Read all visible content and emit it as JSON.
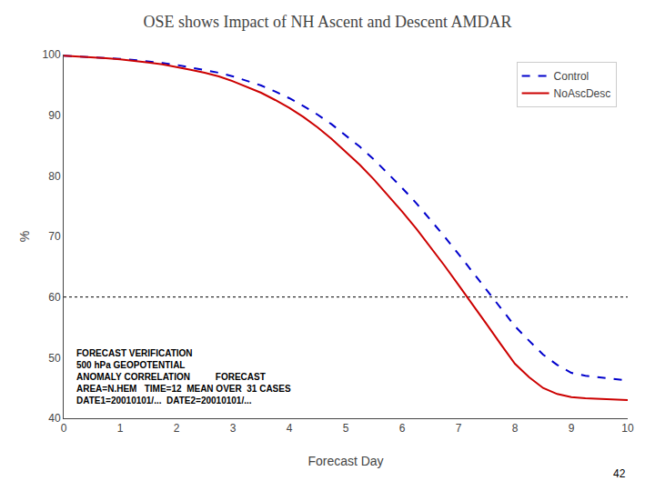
{
  "chart_data": {
    "type": "line",
    "title": "OSE shows Impact of NH Ascent and Descent AMDAR",
    "xlabel": "Forecast Day",
    "ylabel": "%",
    "annotations": [
      "FORECAST VERIFICATION",
      "500 hPa GEOPOTENTIAL",
      "ANOMALY CORRELATION          FORECAST",
      "AREA=N.HEM   TIME=12  MEAN OVER  31 CASES",
      "DATE1=20010101/...  DATE2=20010101/..."
    ],
    "footnote": "42",
    "x": [
      0,
      0.25,
      0.5,
      0.75,
      1.0,
      1.25,
      1.5,
      1.75,
      2.0,
      2.25,
      2.5,
      2.75,
      3.0,
      3.25,
      3.5,
      3.75,
      4.0,
      4.25,
      4.5,
      4.75,
      5.0,
      5.25,
      5.5,
      5.75,
      6.0,
      6.25,
      6.5,
      6.75,
      7.0,
      7.25,
      7.5,
      7.75,
      8.0,
      8.25,
      8.5,
      8.75,
      9.0,
      9.25,
      9.5,
      9.75,
      10.0
    ],
    "series": [
      {
        "name": "Control",
        "color": "#0000cc",
        "line_style": "dashed",
        "values": [
          99.8,
          99.7,
          99.6,
          99.5,
          99.3,
          99.1,
          98.9,
          98.6,
          98.3,
          97.9,
          97.5,
          97.0,
          96.4,
          95.7,
          94.9,
          93.9,
          92.8,
          91.5,
          90.1,
          88.5,
          86.7,
          84.8,
          82.7,
          80.4,
          78.0,
          75.5,
          72.8,
          70.0,
          67.1,
          64.1,
          61.1,
          58.1,
          55.2,
          52.8,
          50.5,
          48.8,
          47.5,
          47.0,
          46.8,
          46.5,
          46.2
        ]
      },
      {
        "name": "NoAscDesc",
        "color": "#cc0000",
        "line_style": "solid",
        "values": [
          99.8,
          99.7,
          99.6,
          99.4,
          99.2,
          99.0,
          98.7,
          98.4,
          98.0,
          97.5,
          97.0,
          96.4,
          95.6,
          94.7,
          93.7,
          92.5,
          91.2,
          89.7,
          88.0,
          86.1,
          84.0,
          81.8,
          79.4,
          76.8,
          74.1,
          71.3,
          68.3,
          65.2,
          62.0,
          58.8,
          55.5,
          52.2,
          49.0,
          46.8,
          45.0,
          44.0,
          43.5,
          43.3,
          43.2,
          43.1,
          43.0
        ]
      }
    ],
    "reference_lines": [
      {
        "y": 60,
        "color": "#000000",
        "line_style": "dotted"
      }
    ],
    "xlim": [
      0,
      10
    ],
    "ylim": [
      40,
      100
    ],
    "xticks": [
      0,
      1,
      2,
      3,
      4,
      5,
      6,
      7,
      8,
      9,
      10
    ],
    "yticks": [
      40,
      50,
      60,
      70,
      80,
      90,
      100
    ],
    "grid": false,
    "legend": "upper right"
  }
}
